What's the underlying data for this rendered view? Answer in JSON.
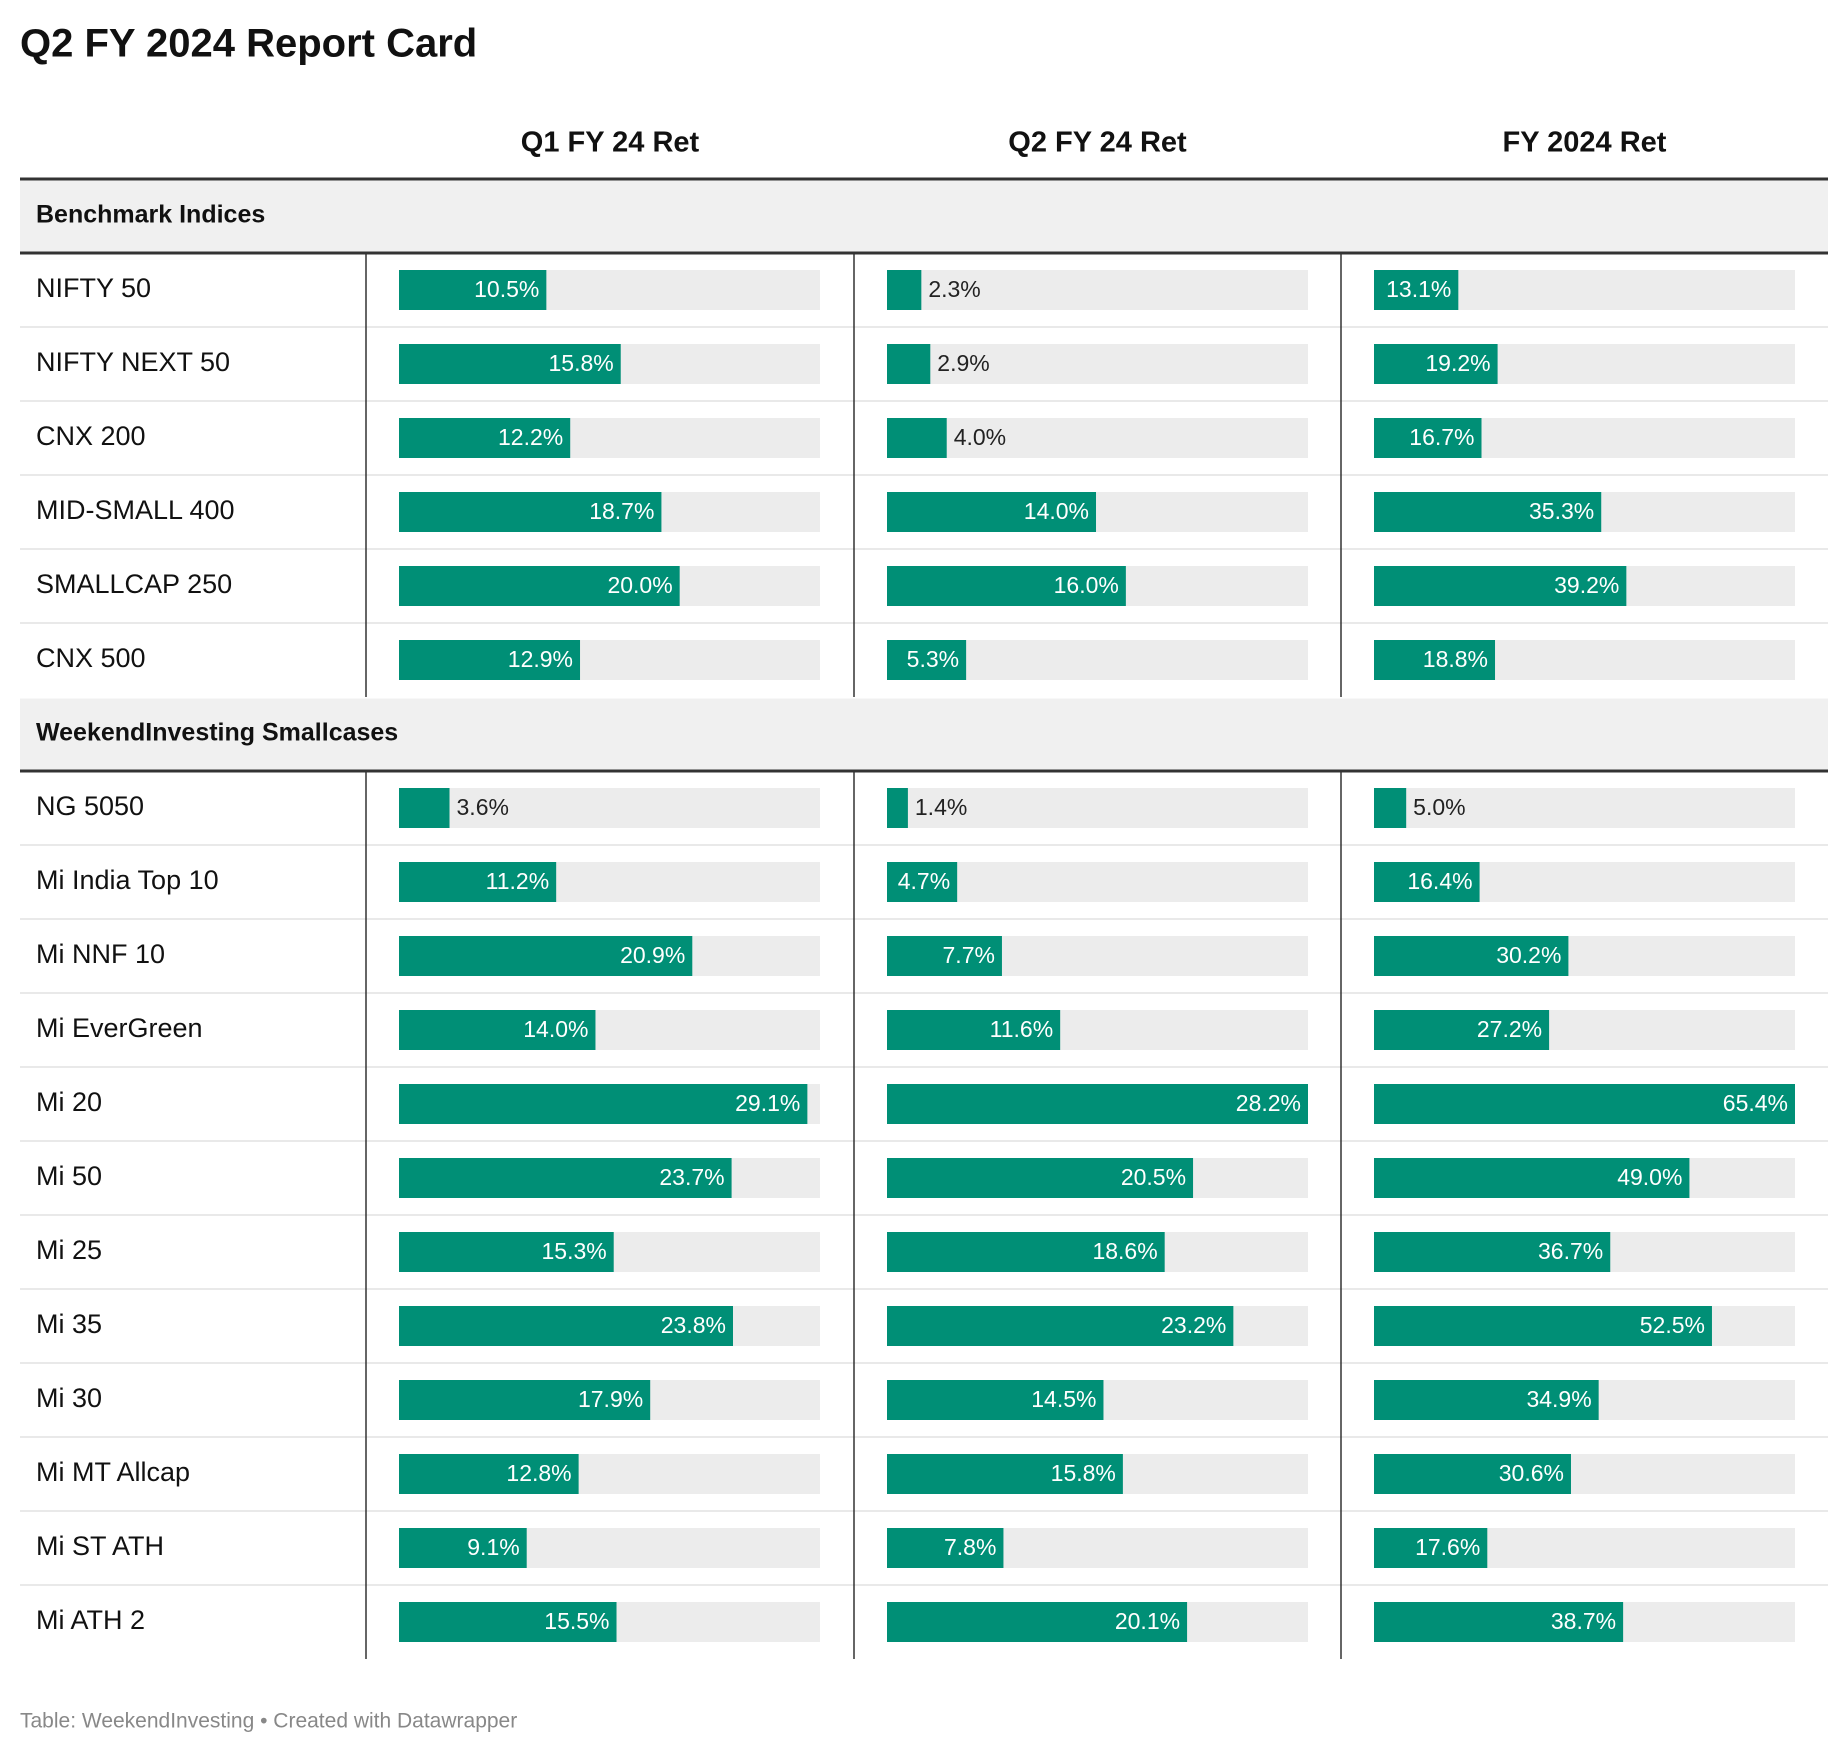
{
  "title": "Q2 FY 2024 Report Card",
  "columns": [
    {
      "label": "Q1 FY 24 Ret",
      "range": [
        0,
        30
      ]
    },
    {
      "label": "Q2 FY 24 Ret",
      "range": [
        0,
        28.2
      ]
    },
    {
      "label": "FY 2024 Ret",
      "range": [
        0,
        65.4
      ]
    }
  ],
  "bar_color": "#008f76",
  "track_color": "#ececec",
  "groups": [
    {
      "title": "Benchmark Indices",
      "rows": [
        {
          "label": "NIFTY 50",
          "values": [
            10.5,
            2.3,
            13.1
          ],
          "value_labels": [
            "10.5%",
            "2.3%",
            "13.1%"
          ]
        },
        {
          "label": "NIFTY NEXT 50",
          "values": [
            15.8,
            2.9,
            19.2
          ],
          "value_labels": [
            "15.8%",
            "2.9%",
            "19.2%"
          ]
        },
        {
          "label": "CNX 200",
          "values": [
            12.2,
            4.0,
            16.7
          ],
          "value_labels": [
            "12.2%",
            "4.0%",
            "16.7%"
          ]
        },
        {
          "label": "MID-SMALL 400",
          "values": [
            18.7,
            14.0,
            35.3
          ],
          "value_labels": [
            "18.7%",
            "14.0%",
            "35.3%"
          ]
        },
        {
          "label": "SMALLCAP 250",
          "values": [
            20.0,
            16.0,
            39.2
          ],
          "value_labels": [
            "20.0%",
            "16.0%",
            "39.2%"
          ]
        },
        {
          "label": "CNX 500",
          "values": [
            12.9,
            5.3,
            18.8
          ],
          "value_labels": [
            "12.9%",
            "5.3%",
            "18.8%"
          ]
        }
      ]
    },
    {
      "title": "WeekendInvesting Smallcases",
      "rows": [
        {
          "label": "NG 5050",
          "values": [
            3.6,
            1.4,
            5.0
          ],
          "value_labels": [
            "3.6%",
            "1.4%",
            "5.0%"
          ]
        },
        {
          "label": "Mi India Top 10",
          "values": [
            11.2,
            4.7,
            16.4
          ],
          "value_labels": [
            "11.2%",
            "4.7%",
            "16.4%"
          ]
        },
        {
          "label": "Mi NNF 10",
          "values": [
            20.9,
            7.7,
            30.2
          ],
          "value_labels": [
            "20.9%",
            "7.7%",
            "30.2%"
          ]
        },
        {
          "label": "Mi EverGreen",
          "values": [
            14.0,
            11.6,
            27.2
          ],
          "value_labels": [
            "14.0%",
            "11.6%",
            "27.2%"
          ]
        },
        {
          "label": "Mi 20",
          "values": [
            29.1,
            28.2,
            65.4
          ],
          "value_labels": [
            "29.1%",
            "28.2%",
            "65.4%"
          ]
        },
        {
          "label": "Mi 50",
          "values": [
            23.7,
            20.5,
            49.0
          ],
          "value_labels": [
            "23.7%",
            "20.5%",
            "49.0%"
          ]
        },
        {
          "label": "Mi 25",
          "values": [
            15.3,
            18.6,
            36.7
          ],
          "value_labels": [
            "15.3%",
            "18.6%",
            "36.7%"
          ]
        },
        {
          "label": "Mi 35",
          "values": [
            23.8,
            23.2,
            52.5
          ],
          "value_labels": [
            "23.8%",
            "23.2%",
            "52.5%"
          ]
        },
        {
          "label": "Mi 30",
          "values": [
            17.9,
            14.5,
            34.9
          ],
          "value_labels": [
            "17.9%",
            "14.5%",
            "34.9%"
          ]
        },
        {
          "label": "Mi MT Allcap",
          "values": [
            12.8,
            15.8,
            30.6
          ],
          "value_labels": [
            "12.8%",
            "15.8%",
            "30.6%"
          ]
        },
        {
          "label": "Mi ST ATH",
          "values": [
            9.1,
            7.8,
            17.6
          ],
          "value_labels": [
            "9.1%",
            "7.8%",
            "17.6%"
          ]
        },
        {
          "label": "Mi ATH 2",
          "values": [
            15.5,
            20.1,
            38.7
          ],
          "value_labels": [
            "15.5%",
            "20.1%",
            "38.7%"
          ]
        }
      ]
    }
  ],
  "footer": "Table: WeekendInvesting • Created with Datawrapper"
}
